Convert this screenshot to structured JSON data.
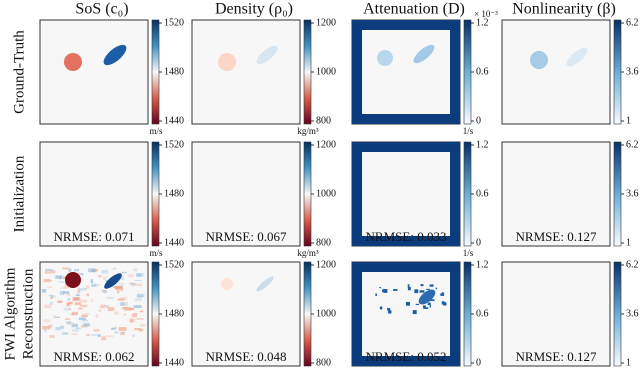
{
  "columns": [
    {
      "title": "SoS (c₀)",
      "unit": "m/s",
      "ticks": [
        1520,
        1480,
        1440
      ]
    },
    {
      "title": "Density (ρ₀)",
      "unit": "kg/m³",
      "ticks": [
        1200,
        1000,
        800
      ]
    },
    {
      "title": "Attenuation (D)",
      "unit": "1/s",
      "exponent": "× 10⁻³",
      "ticks": [
        1.2,
        0.6,
        0
      ]
    },
    {
      "title": "Nonlinearity (β)",
      "ticks": [
        6.2,
        3.6,
        1
      ]
    }
  ],
  "rows": [
    {
      "label": [
        "Ground-Truth"
      ]
    },
    {
      "label": [
        "Initialization"
      ],
      "nrmse": [
        "NRMSE: 0.071",
        "NRMSE: 0.067",
        "NRMSE: 0.033",
        "NRMSE: 0.127"
      ]
    },
    {
      "label": [
        "FWI Algorithm",
        "Reconstruction"
      ],
      "nrmse": [
        "NRMSE: 0.062",
        "NRMSE: 0.048",
        "NRMSE: 0.052",
        "NRMSE: 0.127"
      ]
    }
  ]
}
